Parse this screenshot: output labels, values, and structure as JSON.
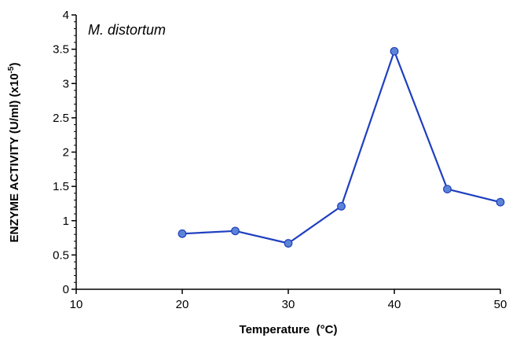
{
  "chart_data": {
    "type": "line",
    "annotation": "M. distortum",
    "xlabel": "Temperature  (°C)",
    "ylabel": "ENZYME ACTIVITY (U/ml) (x10",
    "ylabel_exponent": "-5",
    "ylabel_suffix": ")",
    "xlim": [
      10,
      50
    ],
    "ylim": [
      0,
      4
    ],
    "x_ticks": [
      "10",
      "20",
      "30",
      "40",
      "50"
    ],
    "y_ticks": [
      "0",
      "0.5",
      "1",
      "1.5",
      "2",
      "2.5",
      "3",
      "3.5",
      "4"
    ],
    "grid": false,
    "series": [
      {
        "x": [
          20,
          25,
          30,
          35,
          40,
          45,
          50
        ],
        "y": [
          0.81,
          0.85,
          0.67,
          1.21,
          3.47,
          1.46,
          1.27
        ],
        "color": "#1f3fbf",
        "marker_color": "#5b84d6"
      }
    ]
  }
}
